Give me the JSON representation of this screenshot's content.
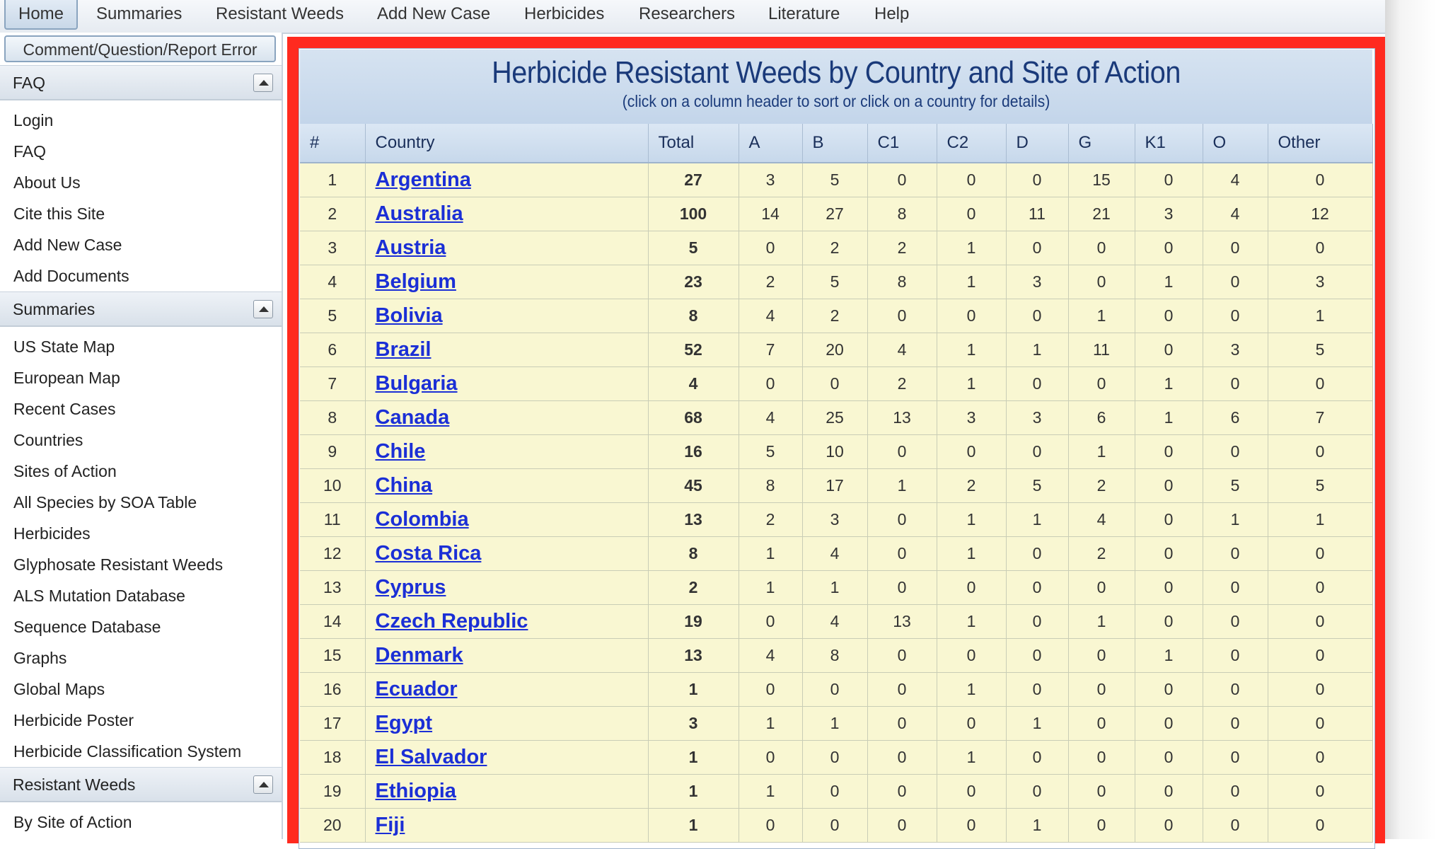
{
  "menu": [
    "Home",
    "Summaries",
    "Resistant Weeds",
    "Add New Case",
    "Herbicides",
    "Researchers",
    "Literature",
    "Help"
  ],
  "sidebar": {
    "comment_button": "Comment/Question/Report Error",
    "sections": [
      {
        "title": "FAQ",
        "items": [
          "Login",
          "FAQ",
          "About Us",
          "Cite this Site",
          "Add New Case",
          "Add Documents"
        ]
      },
      {
        "title": "Summaries",
        "items": [
          "US State Map",
          "European Map",
          "Recent Cases",
          "Countries",
          "Sites of Action",
          "All Species by SOA Table",
          "Herbicides",
          "Glyphosate Resistant Weeds",
          "ALS Mutation Database",
          "Sequence Database",
          "Graphs",
          "Global Maps",
          "Herbicide Poster",
          "Herbicide Classification System"
        ]
      },
      {
        "title": "Resistant Weeds",
        "items": [
          "By Site of Action"
        ]
      }
    ]
  },
  "table": {
    "title": "Herbicide Resistant Weeds by Country and Site of Action",
    "subtitle": "(click on a column header to sort or click on a country for details)",
    "headers": [
      "#",
      "Country",
      "Total",
      "A",
      "B",
      "C1",
      "C2",
      "D",
      "G",
      "K1",
      "O",
      "Other"
    ],
    "rows": [
      [
        "1",
        "Argentina",
        "27",
        "3",
        "5",
        "0",
        "0",
        "0",
        "15",
        "0",
        "4",
        "0"
      ],
      [
        "2",
        "Australia",
        "100",
        "14",
        "27",
        "8",
        "0",
        "11",
        "21",
        "3",
        "4",
        "12"
      ],
      [
        "3",
        "Austria",
        "5",
        "0",
        "2",
        "2",
        "1",
        "0",
        "0",
        "0",
        "0",
        "0"
      ],
      [
        "4",
        "Belgium",
        "23",
        "2",
        "5",
        "8",
        "1",
        "3",
        "0",
        "1",
        "0",
        "3"
      ],
      [
        "5",
        "Bolivia",
        "8",
        "4",
        "2",
        "0",
        "0",
        "0",
        "1",
        "0",
        "0",
        "1"
      ],
      [
        "6",
        "Brazil",
        "52",
        "7",
        "20",
        "4",
        "1",
        "1",
        "11",
        "0",
        "3",
        "5"
      ],
      [
        "7",
        "Bulgaria",
        "4",
        "0",
        "0",
        "2",
        "1",
        "0",
        "0",
        "1",
        "0",
        "0"
      ],
      [
        "8",
        "Canada",
        "68",
        "4",
        "25",
        "13",
        "3",
        "3",
        "6",
        "1",
        "6",
        "7"
      ],
      [
        "9",
        "Chile",
        "16",
        "5",
        "10",
        "0",
        "0",
        "0",
        "1",
        "0",
        "0",
        "0"
      ],
      [
        "10",
        "China",
        "45",
        "8",
        "17",
        "1",
        "2",
        "5",
        "2",
        "0",
        "5",
        "5"
      ],
      [
        "11",
        "Colombia",
        "13",
        "2",
        "3",
        "0",
        "1",
        "1",
        "4",
        "0",
        "1",
        "1"
      ],
      [
        "12",
        "Costa Rica",
        "8",
        "1",
        "4",
        "0",
        "1",
        "0",
        "2",
        "0",
        "0",
        "0"
      ],
      [
        "13",
        "Cyprus",
        "2",
        "1",
        "1",
        "0",
        "0",
        "0",
        "0",
        "0",
        "0",
        "0"
      ],
      [
        "14",
        "Czech Republic",
        "19",
        "0",
        "4",
        "13",
        "1",
        "0",
        "1",
        "0",
        "0",
        "0"
      ],
      [
        "15",
        "Denmark",
        "13",
        "4",
        "8",
        "0",
        "0",
        "0",
        "0",
        "1",
        "0",
        "0"
      ],
      [
        "16",
        "Ecuador",
        "1",
        "0",
        "0",
        "0",
        "1",
        "0",
        "0",
        "0",
        "0",
        "0"
      ],
      [
        "17",
        "Egypt",
        "3",
        "1",
        "1",
        "0",
        "0",
        "1",
        "0",
        "0",
        "0",
        "0"
      ],
      [
        "18",
        "El Salvador",
        "1",
        "0",
        "0",
        "0",
        "1",
        "0",
        "0",
        "0",
        "0",
        "0"
      ],
      [
        "19",
        "Ethiopia",
        "1",
        "1",
        "0",
        "0",
        "0",
        "0",
        "0",
        "0",
        "0",
        "0"
      ],
      [
        "20",
        "Fiji",
        "1",
        "0",
        "0",
        "0",
        "0",
        "1",
        "0",
        "0",
        "0",
        "0"
      ]
    ]
  }
}
